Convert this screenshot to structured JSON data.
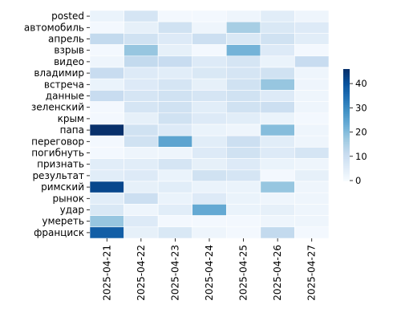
{
  "chart_data": {
    "type": "heatmap",
    "rows": [
      "posted",
      "автомобиль",
      "апрель",
      "взрыв",
      "видео",
      "владимир",
      "встреча",
      "данные",
      "зеленский",
      "крым",
      "папа",
      "переговор",
      "погибнуть",
      "признать",
      "результат",
      "римский",
      "рынок",
      "удар",
      "умереть",
      "франциск"
    ],
    "columns": [
      "2025-04-21",
      "2025-04-22",
      "2025-04-23",
      "2025-04-24",
      "2025-04-25",
      "2025-04-26",
      "2025-04-27"
    ],
    "values": [
      [
        3,
        8,
        1,
        1,
        2,
        5,
        2
      ],
      [
        1,
        4,
        9,
        2,
        16,
        7,
        6
      ],
      [
        12,
        9,
        6,
        10,
        7,
        9,
        5
      ],
      [
        1,
        18,
        4,
        1,
        22,
        6,
        1
      ],
      [
        2,
        12,
        11,
        6,
        8,
        3,
        11
      ],
      [
        11,
        6,
        5,
        7,
        8,
        9,
        2
      ],
      [
        3,
        6,
        8,
        4,
        9,
        18,
        2
      ],
      [
        11,
        8,
        9,
        8,
        9,
        6,
        2
      ],
      [
        1,
        8,
        9,
        5,
        9,
        10,
        2
      ],
      [
        1,
        4,
        9,
        6,
        5,
        3,
        1
      ],
      [
        46,
        9,
        6,
        3,
        2,
        20,
        2
      ],
      [
        1,
        9,
        25,
        5,
        10,
        5,
        2
      ],
      [
        1,
        2,
        2,
        6,
        9,
        6,
        8
      ],
      [
        5,
        5,
        8,
        4,
        6,
        3,
        2
      ],
      [
        5,
        6,
        3,
        9,
        8,
        1,
        4
      ],
      [
        42,
        4,
        5,
        3,
        3,
        18,
        2
      ],
      [
        5,
        10,
        3,
        6,
        3,
        2,
        2
      ],
      [
        7,
        2,
        5,
        24,
        3,
        4,
        2
      ],
      [
        18,
        6,
        1,
        1,
        1,
        2,
        2
      ],
      [
        38,
        4,
        7,
        2,
        1,
        12,
        1
      ]
    ],
    "colorbar": {
      "min": 0,
      "max": 46,
      "ticks": [
        0,
        10,
        20,
        30,
        40
      ]
    },
    "colormap": "Blues",
    "title": "",
    "xlabel": "",
    "ylabel": ""
  }
}
